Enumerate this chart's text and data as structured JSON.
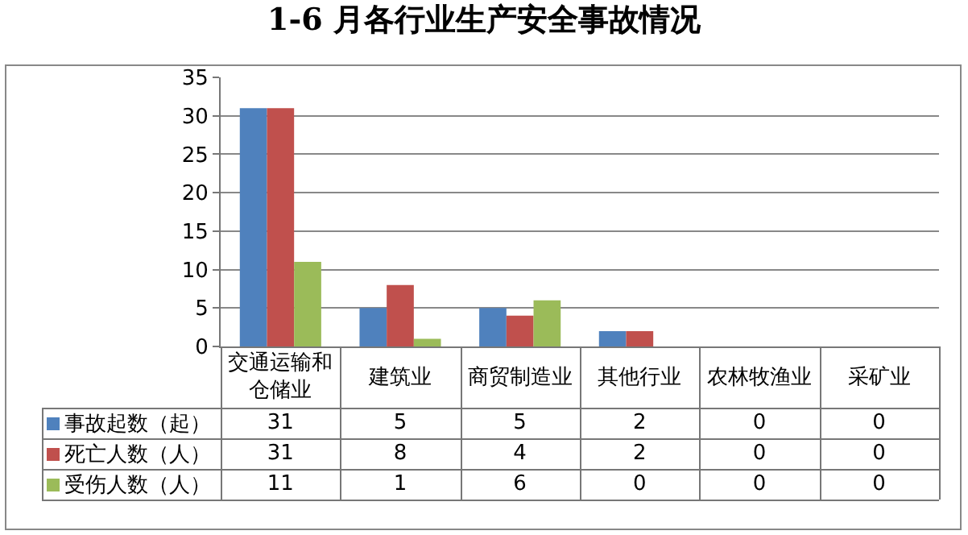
{
  "chart_data": {
    "type": "bar",
    "title": "1-6 月各行业生产安全事故情况",
    "categories": [
      "交通运输和仓储业",
      "建筑业",
      "商贸制造业",
      "其他行业",
      "农林牧渔业",
      "采矿业"
    ],
    "series": [
      {
        "name": "事故起数（起）",
        "color": "#4f81bd",
        "values": [
          31,
          5,
          5,
          2,
          0,
          0
        ]
      },
      {
        "name": "死亡人数（人）",
        "color": "#c0504d",
        "values": [
          31,
          8,
          4,
          2,
          0,
          0
        ]
      },
      {
        "name": "受伤人数（人）",
        "color": "#9bbb59",
        "values": [
          11,
          1,
          6,
          0,
          0,
          0
        ]
      }
    ],
    "ylim": [
      0,
      35
    ],
    "yticks": [
      0,
      5,
      10,
      15,
      20,
      25,
      30,
      35
    ],
    "grid": "y",
    "legend": "bottom",
    "data_labels": true
  }
}
